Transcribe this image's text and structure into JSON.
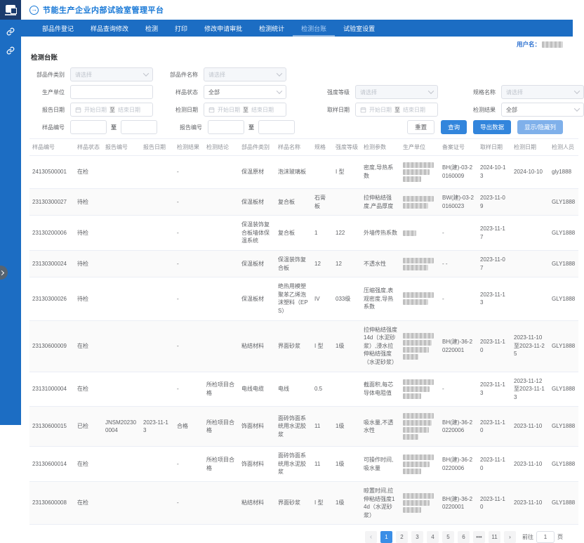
{
  "app": {
    "title": "节能生产企业内部试验室管理平台",
    "user_label": "用户名："
  },
  "nav": {
    "items": [
      {
        "label": "部品件登记",
        "active": false
      },
      {
        "label": "样品查询修改",
        "active": false
      },
      {
        "label": "检测",
        "active": false
      },
      {
        "label": "打印",
        "active": false
      },
      {
        "label": "修改申请审批",
        "active": false
      },
      {
        "label": "检测统计",
        "active": false
      },
      {
        "label": "检测台账",
        "active": true
      },
      {
        "label": "试验室设置",
        "active": false
      }
    ]
  },
  "page": {
    "title": "检测台账"
  },
  "filters": {
    "category": {
      "label": "部品件类别",
      "placeholder": "请选择"
    },
    "part_name": {
      "label": "部品件名称",
      "placeholder": "请选择"
    },
    "producer": {
      "label": "生产单位",
      "value": ""
    },
    "sample_status": {
      "label": "样品状态",
      "value": "全部"
    },
    "strength": {
      "label": "强度等级",
      "placeholder": "请选择"
    },
    "spec_name": {
      "label": "规格名称",
      "placeholder": "请选择"
    },
    "report_date": {
      "label": "报告日期"
    },
    "test_date": {
      "label": "检测日期"
    },
    "sampling_date": {
      "label": "取样日期"
    },
    "test_result": {
      "label": "检测结果",
      "value": "全部"
    },
    "sample_no": {
      "label": "样品编号"
    },
    "report_no": {
      "label": "报告编号"
    },
    "date_start_placeholder": "开始日期",
    "date_end_placeholder": "结束日期",
    "range_separator": "至",
    "buttons": {
      "reset": "重置",
      "search": "查询",
      "export": "导出数据",
      "toggle_columns": "显示/隐藏列"
    }
  },
  "table": {
    "headers": [
      "样品编号",
      "样品状态",
      "报告编号",
      "报告日期",
      "检测结果",
      "检测结论",
      "部品件类别",
      "样品名称",
      "规格",
      "强度等级",
      "检测参数",
      "生产单位",
      "备案证号",
      "取样日期",
      "检测日期",
      "检测人员"
    ],
    "rows": [
      {
        "cells": [
          "24130500001",
          "在检",
          "",
          "",
          "-",
          "",
          "保温原材",
          "泡沫玻璃板",
          "",
          "I 型",
          "密度,导热系数",
          "",
          "BH(建)-03-20160009",
          "2024-10-13",
          "2024-10-10",
          "gly1888"
        ],
        "producer_lines": 3
      },
      {
        "cells": [
          "23130300027",
          "待检",
          "",
          "",
          "-",
          "",
          "保温板材",
          "复合板",
          "石膏板",
          "",
          "拉伸粘结强度,产品厚度",
          "",
          "BW(建)-03-20160023",
          "2023-11-09",
          "",
          "GLY1888"
        ],
        "producer_lines": 2
      },
      {
        "cells": [
          "23130200006",
          "待检",
          "",
          "",
          "-",
          "",
          "保温装饰复合板墙体保温系统",
          "复合板",
          "1",
          "122",
          "外墙传热系数",
          "",
          "-",
          "2023-11-17",
          "",
          "GLY1888"
        ],
        "producer_lines": 1
      },
      {
        "cells": [
          "23130300024",
          "待检",
          "",
          "",
          "-",
          "",
          "保温板材",
          "保温装饰复合板",
          "12",
          "12",
          "不透水性",
          "",
          "- -",
          "2023-11-07",
          "",
          "GLY1888"
        ],
        "producer_lines": 2
      },
      {
        "cells": [
          "23130300026",
          "待检",
          "",
          "",
          "-",
          "",
          "保温板材",
          "绝热用模塑聚苯乙烯泡沫塑料（EPS）",
          "IV",
          "033级",
          "压缩强度,表观密度,导热系数",
          "",
          "-",
          "2023-11-13",
          "",
          "GLY1888"
        ],
        "producer_lines": 2
      },
      {
        "cells": [
          "23130600009",
          "在检",
          "",
          "",
          "-",
          "",
          "粘结材料",
          "界面砂浆",
          "I 型",
          "1级",
          "拉伸粘结强度14d（水泥砂浆）,浸水拉伸粘结强度（水泥砂浆）",
          "",
          "BH(建)-36-20220001",
          "2023-11-10",
          "2023-11-10至2023-11-25",
          "GLY1888"
        ],
        "producer_lines": 4
      },
      {
        "cells": [
          "23131000004",
          "在检",
          "",
          "",
          "-",
          "所检项目合格",
          "电线电缆",
          "电线",
          "0.5",
          "",
          "截面积,每芯导体电阻值",
          "",
          "-",
          "2023-11-13",
          "2023-11-12至2023-11-13",
          "GLY1888"
        ],
        "producer_lines": 3
      },
      {
        "cells": [
          "23130600015",
          "已检",
          "JNSM202300004",
          "2023-11-13",
          "合格",
          "所检项目合格",
          "饰面材料",
          "面砖饰面系统用水泥胶浆",
          "11",
          "1级",
          "吸水量,不透水性",
          "",
          "BH(建)-36-20220006",
          "2023-11-10",
          "2023-11-10",
          "GLY1888"
        ],
        "producer_lines": 4
      },
      {
        "cells": [
          "23130600014",
          "在检",
          "",
          "",
          "-",
          "所检项目合格",
          "饰面材料",
          "面砖饰面系统用水泥胶浆",
          "11",
          "1级",
          "可操作时间,吸水量",
          "",
          "BH(建)-36-20220006",
          "2023-11-10",
          "2023-11-10",
          "GLY1888"
        ],
        "producer_lines": 3
      },
      {
        "cells": [
          "23130600008",
          "在检",
          "",
          "",
          "-",
          "",
          "粘结材料",
          "界面砂浆",
          "I 型",
          "1级",
          "晾置时间,拉伸粘结强度14d（水泥砂浆）",
          "",
          "BH(建)-36-20220001",
          "2023-11-10",
          "2023-11-10",
          "GLY1888"
        ],
        "producer_lines": 3
      }
    ]
  },
  "pagination": {
    "prev": "‹",
    "next": "›",
    "pages": [
      "1",
      "2",
      "3",
      "4",
      "5",
      "6",
      "•••",
      "11"
    ],
    "active_page": "1",
    "goto_label": "前往",
    "goto_value": "1",
    "unit_label": "页"
  }
}
